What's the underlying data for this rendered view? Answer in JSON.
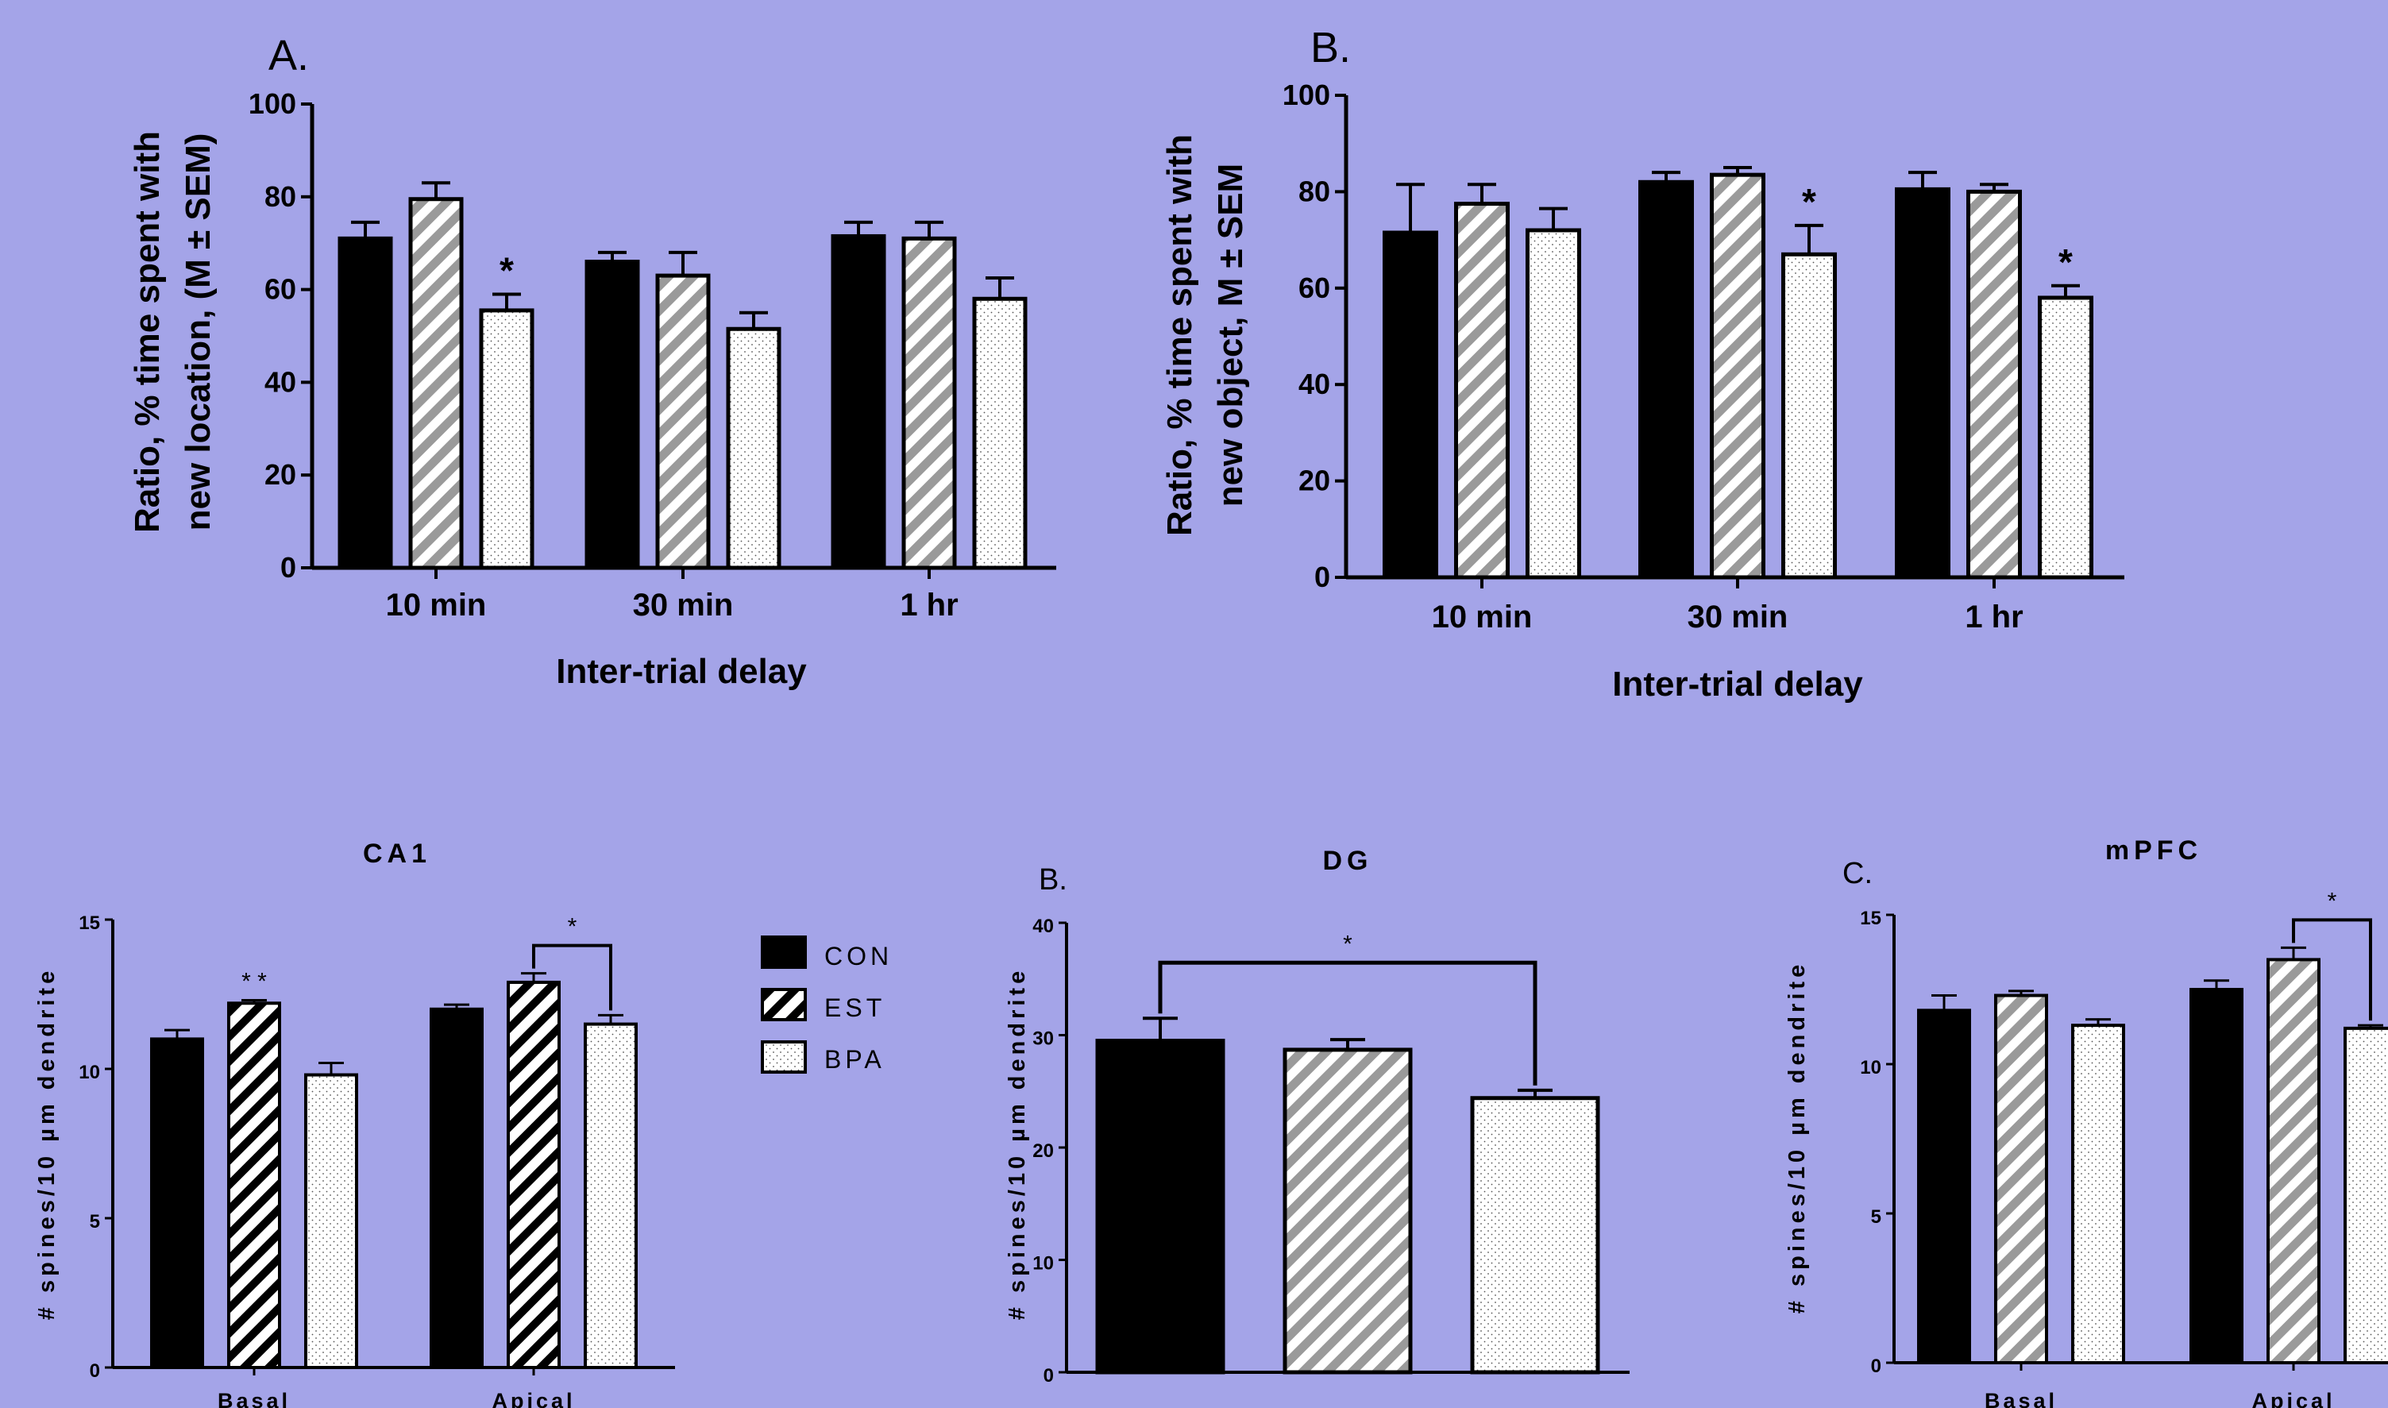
{
  "colors": {
    "background": "#a4a4e8",
    "CON": "#000000",
    "EST": "#9a9a9a",
    "BPA": "#ffffff"
  },
  "legend": {
    "items": [
      {
        "label": "CON",
        "pattern": "solid"
      },
      {
        "label": "EST",
        "pattern": "diagonal-stripes"
      },
      {
        "label": "BPA",
        "pattern": "dots"
      }
    ]
  },
  "chart_data": [
    {
      "panel": "A.",
      "type": "bar",
      "title": "",
      "xlabel": "Inter-trial delay",
      "ylabel_lines": [
        "Ratio, % time spent with",
        "new location, (M ± SEM)"
      ],
      "ylim": [
        0,
        100
      ],
      "yticks": [
        "0",
        "20",
        "40",
        "60",
        "80",
        "100"
      ],
      "categories": [
        "10 min",
        "30 min",
        "1 hr"
      ],
      "series": [
        {
          "name": "CON",
          "pattern": "solid",
          "values": [
            71,
            66,
            71.5
          ],
          "sem": [
            3.5,
            2,
            3
          ]
        },
        {
          "name": "EST",
          "pattern": "gray-stripes",
          "values": [
            79.5,
            63,
            71
          ],
          "sem": [
            3.5,
            5,
            3.5
          ]
        },
        {
          "name": "BPA",
          "pattern": "dots",
          "values": [
            55.5,
            51.5,
            58
          ],
          "sem": [
            3.5,
            3.5,
            4.5
          ]
        }
      ],
      "annotations": [
        {
          "text": "*",
          "category": "10 min",
          "series": "BPA"
        }
      ]
    },
    {
      "panel": "B.",
      "type": "bar",
      "title": "",
      "xlabel": "Inter-trial delay",
      "ylabel_lines": [
        "Ratio, % time spent with",
        "new object, M ± SEM"
      ],
      "ylim": [
        0,
        100
      ],
      "yticks": [
        "0",
        "20",
        "40",
        "60",
        "80",
        "100"
      ],
      "categories": [
        "10 min",
        "30 min",
        "1 hr"
      ],
      "series": [
        {
          "name": "CON",
          "pattern": "solid",
          "values": [
            71.5,
            82,
            80.5
          ],
          "sem": [
            10,
            2,
            3.5
          ]
        },
        {
          "name": "EST",
          "pattern": "gray-stripes",
          "values": [
            77.5,
            83.5,
            80
          ],
          "sem": [
            4,
            1.5,
            1.5
          ]
        },
        {
          "name": "BPA",
          "pattern": "dots",
          "values": [
            72,
            67,
            58
          ],
          "sem": [
            4.5,
            6,
            2.5
          ]
        }
      ],
      "annotations": [
        {
          "text": "*",
          "category": "30 min",
          "series": "BPA"
        },
        {
          "text": "*",
          "category": "1 hr",
          "series": "BPA"
        }
      ]
    },
    {
      "panel": "",
      "type": "bar",
      "title": "CA1",
      "ylabel": "# spines/10 µm dendrite",
      "ylim": [
        0,
        15
      ],
      "yticks": [
        "0",
        "5",
        "10",
        "15"
      ],
      "categories": [
        "Basal",
        "Apical"
      ],
      "series": [
        {
          "name": "CON",
          "pattern": "solid",
          "values": [
            11.0,
            12.0
          ],
          "sem": [
            0.3,
            0.15
          ]
        },
        {
          "name": "EST",
          "pattern": "black-stripes",
          "values": [
            12.2,
            12.9
          ],
          "sem": [
            0.1,
            0.3
          ]
        },
        {
          "name": "BPA",
          "pattern": "dots",
          "values": [
            9.8,
            11.5
          ],
          "sem": [
            0.4,
            0.3
          ]
        }
      ],
      "annotations": [
        {
          "text": "* *",
          "category": "Basal",
          "series": "EST"
        },
        {
          "text": "*",
          "bracket": [
            "Apical:EST",
            "Apical:BPA"
          ]
        }
      ]
    },
    {
      "panel": "B.",
      "type": "bar",
      "title": "DG",
      "ylabel": "# spines/10 µm dendrite",
      "ylim": [
        0,
        40
      ],
      "yticks": [
        "0",
        "10",
        "20",
        "30",
        "40"
      ],
      "categories": [
        ""
      ],
      "series": [
        {
          "name": "CON",
          "pattern": "solid",
          "values": [
            29.5
          ],
          "sem": [
            2.0
          ]
        },
        {
          "name": "EST",
          "pattern": "gray-stripes",
          "values": [
            28.7
          ],
          "sem": [
            0.9
          ]
        },
        {
          "name": "BPA",
          "pattern": "dots",
          "values": [
            24.4
          ],
          "sem": [
            0.7
          ]
        }
      ],
      "annotations": [
        {
          "text": "*",
          "bracket": [
            "CON",
            "BPA"
          ]
        }
      ]
    },
    {
      "panel": "C.",
      "type": "bar",
      "title": "mPFC",
      "ylabel": "# spines/10 µm dendrite",
      "ylim": [
        0,
        15
      ],
      "yticks": [
        "0",
        "5",
        "10",
        "15"
      ],
      "categories": [
        "Basal",
        "Apical"
      ],
      "series": [
        {
          "name": "CON",
          "pattern": "solid",
          "values": [
            11.8,
            12.5
          ],
          "sem": [
            0.5,
            0.3
          ]
        },
        {
          "name": "EST",
          "pattern": "gray-stripes",
          "values": [
            12.3,
            13.5
          ],
          "sem": [
            0.15,
            0.4
          ]
        },
        {
          "name": "BPA",
          "pattern": "dots",
          "values": [
            11.3,
            11.2
          ],
          "sem": [
            0.2,
            0.1
          ]
        }
      ],
      "annotations": [
        {
          "text": "*",
          "bracket": [
            "Apical:EST",
            "Apical:BPA"
          ]
        }
      ]
    }
  ]
}
